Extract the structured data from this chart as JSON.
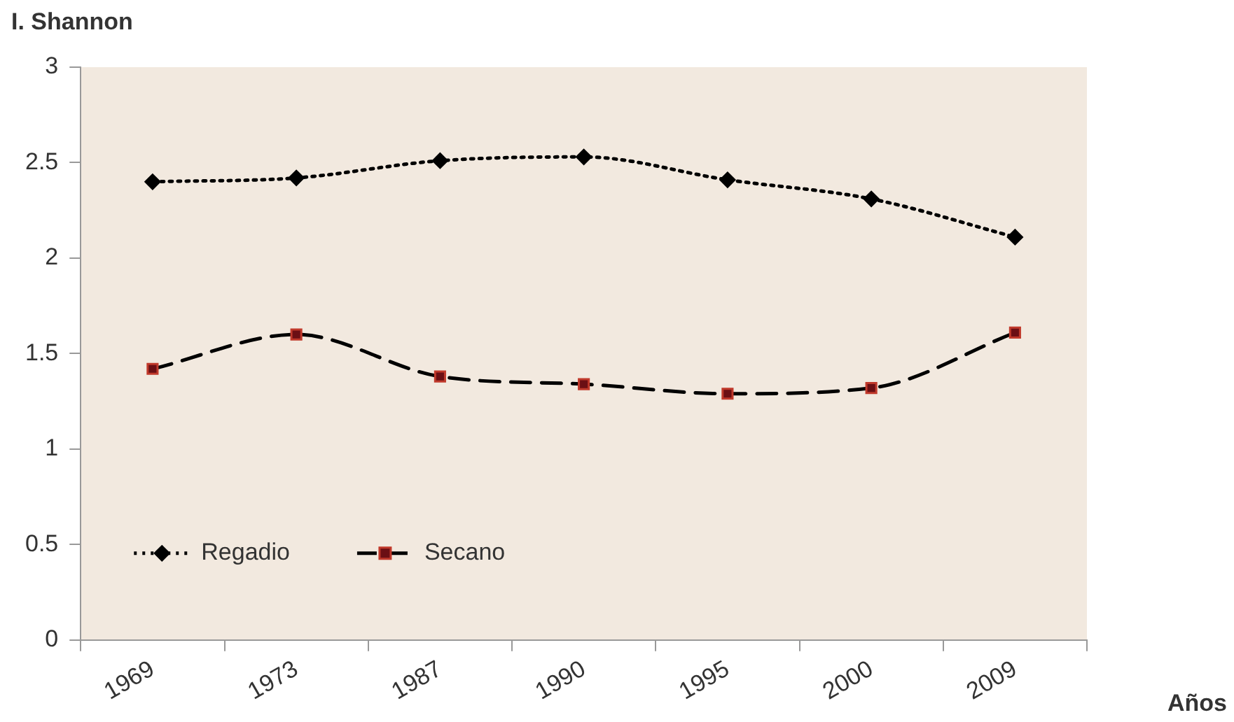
{
  "chart_data": {
    "type": "line",
    "ylabel": "I. Shannon",
    "xlabel": "Años",
    "categories": [
      "1969",
      "1973",
      "1987",
      "1990",
      "1995",
      "2000",
      "2009"
    ],
    "series": [
      {
        "name": "Regadio",
        "color": "#000000",
        "marker": "diamond",
        "line_style": "dotted",
        "values": [
          2.4,
          2.42,
          2.51,
          2.53,
          2.41,
          2.31,
          2.11
        ]
      },
      {
        "name": "Secano",
        "color": "#6b0f14",
        "marker": "square",
        "line_style": "dashed",
        "values": [
          1.42,
          1.6,
          1.38,
          1.34,
          1.29,
          1.32,
          1.61
        ]
      }
    ],
    "ylim": [
      0,
      3
    ],
    "yticks": [
      0,
      0.5,
      1,
      1.5,
      2,
      2.5,
      3
    ],
    "grid": false,
    "legend": "bottom left"
  }
}
